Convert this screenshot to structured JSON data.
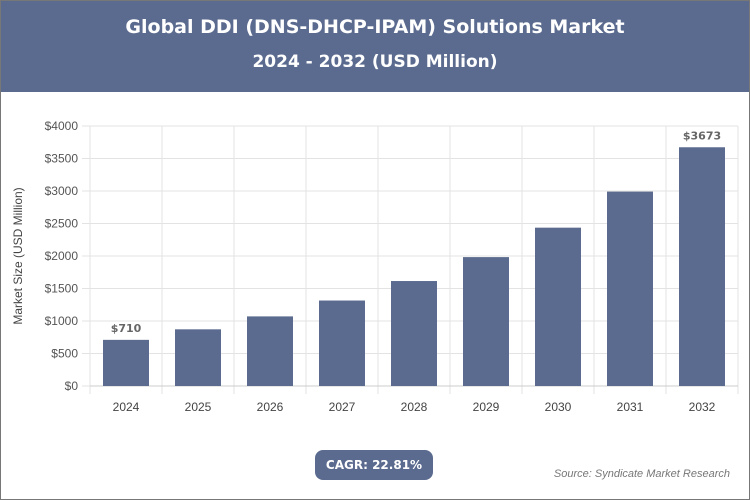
{
  "chart_data": {
    "type": "bar",
    "title": "Global DDI (DNS-DHCP-IPAM) Solutions Market",
    "subtitle": "2024 - 2032 (USD Million)",
    "xlabel": "",
    "ylabel": "Market Size (USD Million)",
    "categories": [
      "2024",
      "2025",
      "2026",
      "2027",
      "2028",
      "2029",
      "2030",
      "2031",
      "2032"
    ],
    "values": [
      710,
      872,
      1071,
      1315,
      1615,
      1983,
      2436,
      2991,
      3673
    ],
    "data_labels": {
      "0": "$710",
      "8": "$3673"
    },
    "ylim": [
      0,
      4000
    ],
    "yticks": [
      0,
      500,
      1000,
      1500,
      2000,
      2500,
      3000,
      3500,
      4000
    ],
    "ytick_labels": [
      "$0",
      "$500",
      "$1000",
      "$1500",
      "$2000",
      "$2500",
      "$3000",
      "$3500",
      "$4000"
    ],
    "grid": true,
    "bar_color": "#5b6b8f"
  },
  "cagr": "CAGR: 22.81%",
  "source": "Source: Syndicate Market Research"
}
